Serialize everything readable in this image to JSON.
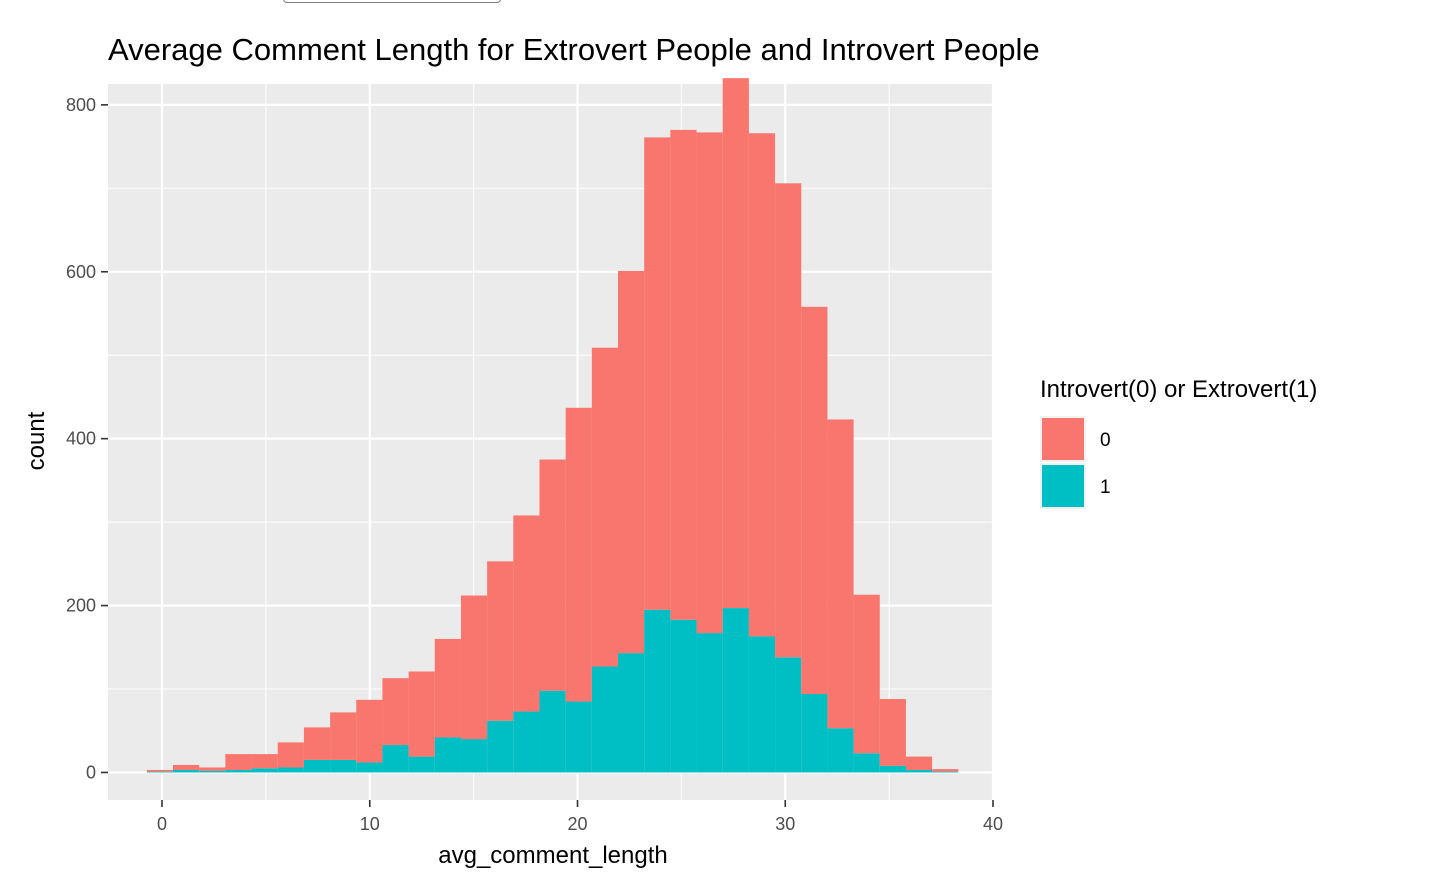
{
  "chart_data": {
    "type": "bar",
    "stacked": true,
    "title": "Average Comment Length for Extrovert People and Introvert People",
    "xlabel": "avg_comment_length",
    "ylabel": "count",
    "xlim": [
      -2.6,
      40
    ],
    "ylim": [
      -33,
      825
    ],
    "x_ticks": [
      0,
      10,
      20,
      30,
      40
    ],
    "y_ticks": [
      0,
      200,
      400,
      600,
      800
    ],
    "grid": true,
    "legend_position": "right",
    "bin_width": 1.26,
    "bin_start": -0.73,
    "legend": {
      "title": "Introvert(0) or Extrovert(1)",
      "entries": [
        {
          "label": "0",
          "color": "#F8766D"
        },
        {
          "label": "1",
          "color": "#00BFC4"
        }
      ]
    },
    "x": [
      -0.1,
      1.16,
      2.42,
      3.68,
      4.94,
      6.2,
      7.46,
      8.72,
      9.98,
      11.24,
      12.5,
      13.76,
      15.02,
      16.28,
      17.54,
      18.8,
      20.06,
      21.32,
      22.58,
      23.84,
      25.1,
      26.36,
      27.62,
      28.88,
      30.14,
      31.4,
      32.66,
      33.92,
      35.18,
      36.44,
      37.7
    ],
    "series": [
      {
        "name": "0",
        "color": "#F8766D",
        "values": [
          2,
          6,
          4,
          19,
          17,
          30,
          39,
          57,
          75,
          80,
          102,
          118,
          172,
          191,
          235,
          277,
          352,
          382,
          458,
          566,
          587,
          600,
          635,
          603,
          568,
          464,
          370,
          190,
          80,
          16,
          3
        ]
      },
      {
        "name": "1",
        "color": "#00BFC4",
        "values": [
          1,
          3,
          2,
          3,
          5,
          6,
          15,
          15,
          12,
          33,
          19,
          42,
          40,
          62,
          73,
          98,
          85,
          127,
          143,
          195,
          183,
          167,
          197,
          163,
          138,
          94,
          53,
          23,
          8,
          3,
          1
        ]
      }
    ]
  }
}
